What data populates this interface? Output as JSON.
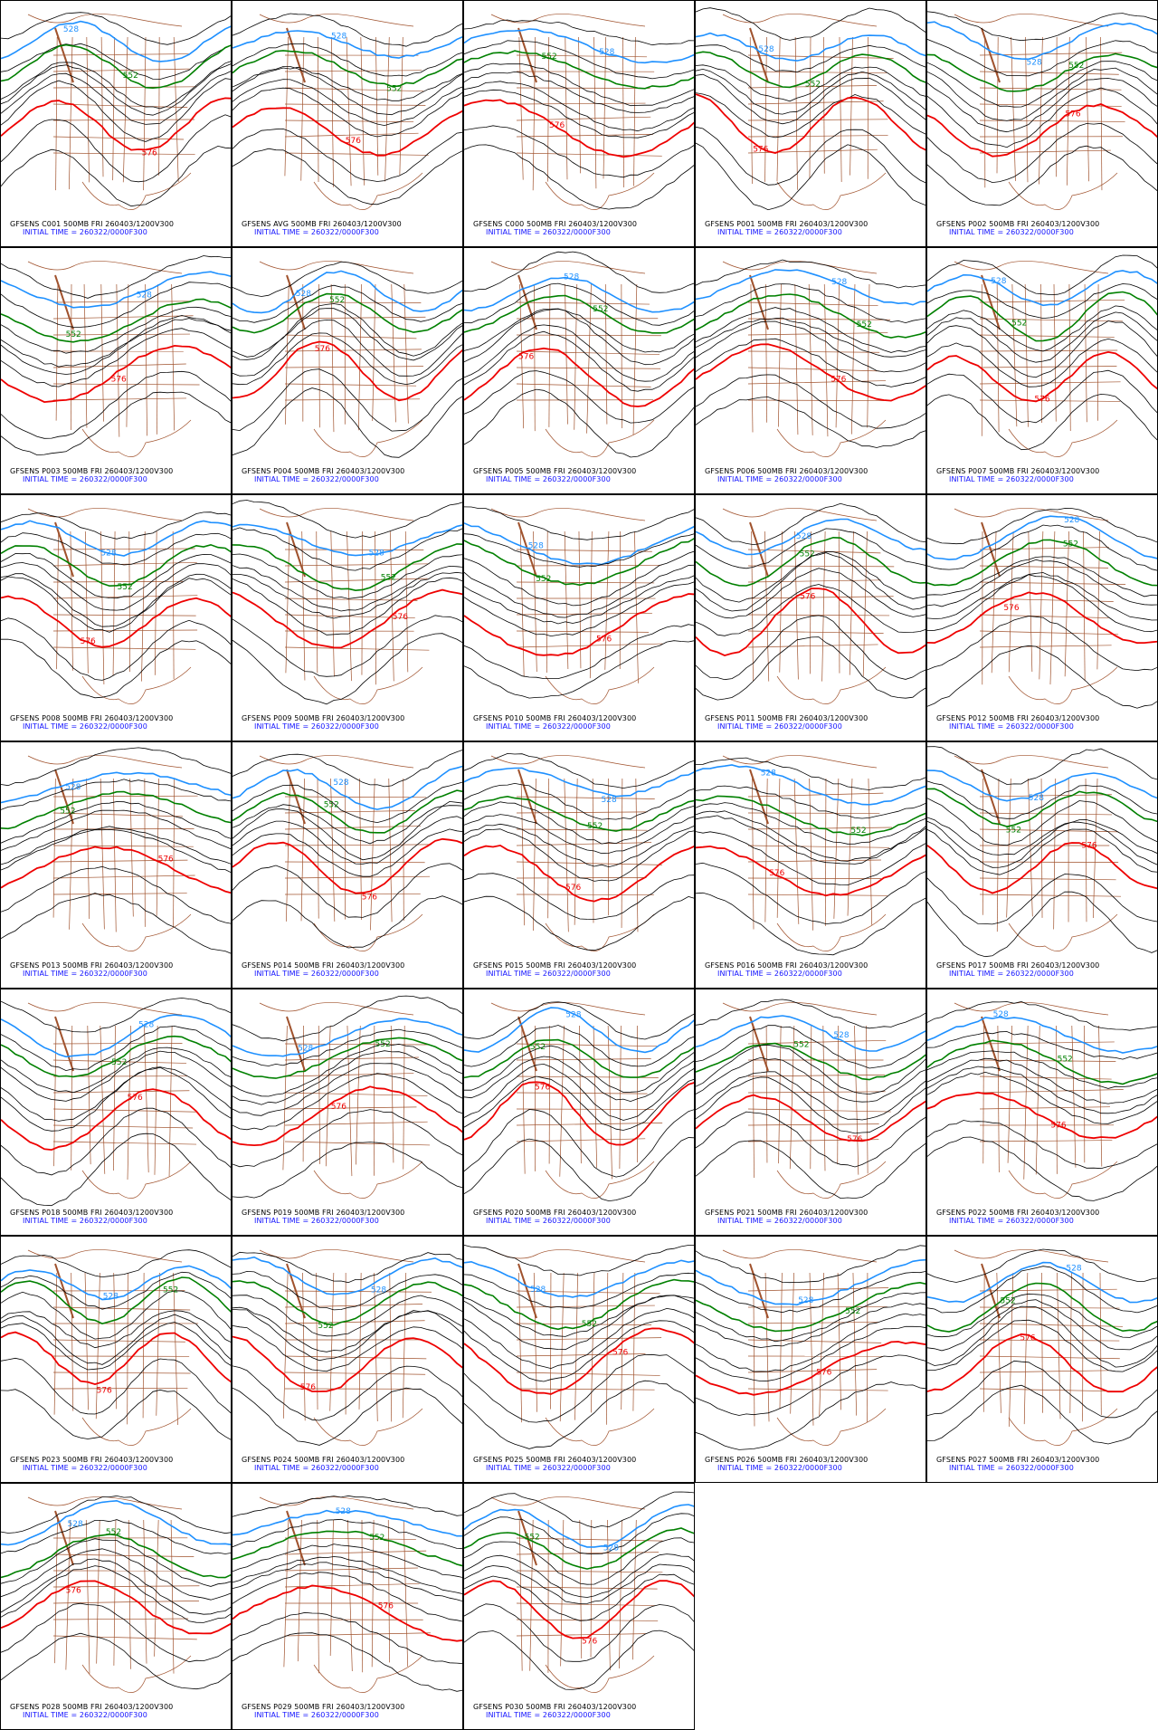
{
  "figure": {
    "init_time_caption": "INITIAL TIME = 260322/0000F300",
    "colors": {
      "blue": "#1e90ff",
      "green": "#008000",
      "red": "#ee0000",
      "black": "#000000",
      "map": "#a0522d"
    },
    "contour_labels": {
      "blue": "528",
      "green": "552",
      "red": "576"
    }
  },
  "panels": [
    {
      "member": "C001",
      "caption": "GFSENS C001 500MB FRI 260403/1200V300"
    },
    {
      "member": "AVG",
      "caption": "GFSENS AVG 500MB FRI 260403/1200V300"
    },
    {
      "member": "C000",
      "caption": "GFSENS C000 500MB FRI 260403/1200V300"
    },
    {
      "member": "P001",
      "caption": "GFSENS P001 500MB FRI 260403/1200V300"
    },
    {
      "member": "P002",
      "caption": "GFSENS P002 500MB FRI 260403/1200V300"
    },
    {
      "member": "P003",
      "caption": "GFSENS P003 500MB FRI 260403/1200V300"
    },
    {
      "member": "P004",
      "caption": "GFSENS P004 500MB FRI 260403/1200V300"
    },
    {
      "member": "P005",
      "caption": "GFSENS P005 500MB FRI 260403/1200V300"
    },
    {
      "member": "P006",
      "caption": "GFSENS P006 500MB FRI 260403/1200V300"
    },
    {
      "member": "P007",
      "caption": "GFSENS P007 500MB FRI 260403/1200V300"
    },
    {
      "member": "P008",
      "caption": "GFSENS P008 500MB FRI 260403/1200V300"
    },
    {
      "member": "P009",
      "caption": "GFSENS P009 500MB FRI 260403/1200V300"
    },
    {
      "member": "P010",
      "caption": "GFSENS P010 500MB FRI 260403/1200V300"
    },
    {
      "member": "P011",
      "caption": "GFSENS P011 500MB FRI 260403/1200V300"
    },
    {
      "member": "P012",
      "caption": "GFSENS P012 500MB FRI 260403/1200V300"
    },
    {
      "member": "P013",
      "caption": "GFSENS P013 500MB FRI 260403/1200V300"
    },
    {
      "member": "P014",
      "caption": "GFSENS P014 500MB FRI 260403/1200V300"
    },
    {
      "member": "P015",
      "caption": "GFSENS P015 500MB FRI 260403/1200V300"
    },
    {
      "member": "P016",
      "caption": "GFSENS P016 500MB FRI 260403/1200V300"
    },
    {
      "member": "P017",
      "caption": "GFSENS P017 500MB FRI 260403/1200V300"
    },
    {
      "member": "P018",
      "caption": "GFSENS P018 500MB FRI 260403/1200V300"
    },
    {
      "member": "P019",
      "caption": "GFSENS P019 500MB FRI 260403/1200V300"
    },
    {
      "member": "P020",
      "caption": "GFSENS P020 500MB FRI 260403/1200V300"
    },
    {
      "member": "P021",
      "caption": "GFSENS P021 500MB FRI 260403/1200V300"
    },
    {
      "member": "P022",
      "caption": "GFSENS P022 500MB FRI 260403/1200V300"
    },
    {
      "member": "P023",
      "caption": "GFSENS P023 500MB FRI 260403/1200V300"
    },
    {
      "member": "P024",
      "caption": "GFSENS P024 500MB FRI 260403/1200V300"
    },
    {
      "member": "P025",
      "caption": "GFSENS P025 500MB FRI 260403/1200V300"
    },
    {
      "member": "P026",
      "caption": "GFSENS P026 500MB FRI 260403/1200V300"
    },
    {
      "member": "P027",
      "caption": "GFSENS P027 500MB FRI 260403/1200V300"
    },
    {
      "member": "P028",
      "caption": "GFSENS P028 500MB FRI 260403/1200V300"
    },
    {
      "member": "P029",
      "caption": "GFSENS P029 500MB FRI 260403/1200V300"
    },
    {
      "member": "P030",
      "caption": "GFSENS P030 500MB FRI 260403/1200V300"
    }
  ]
}
